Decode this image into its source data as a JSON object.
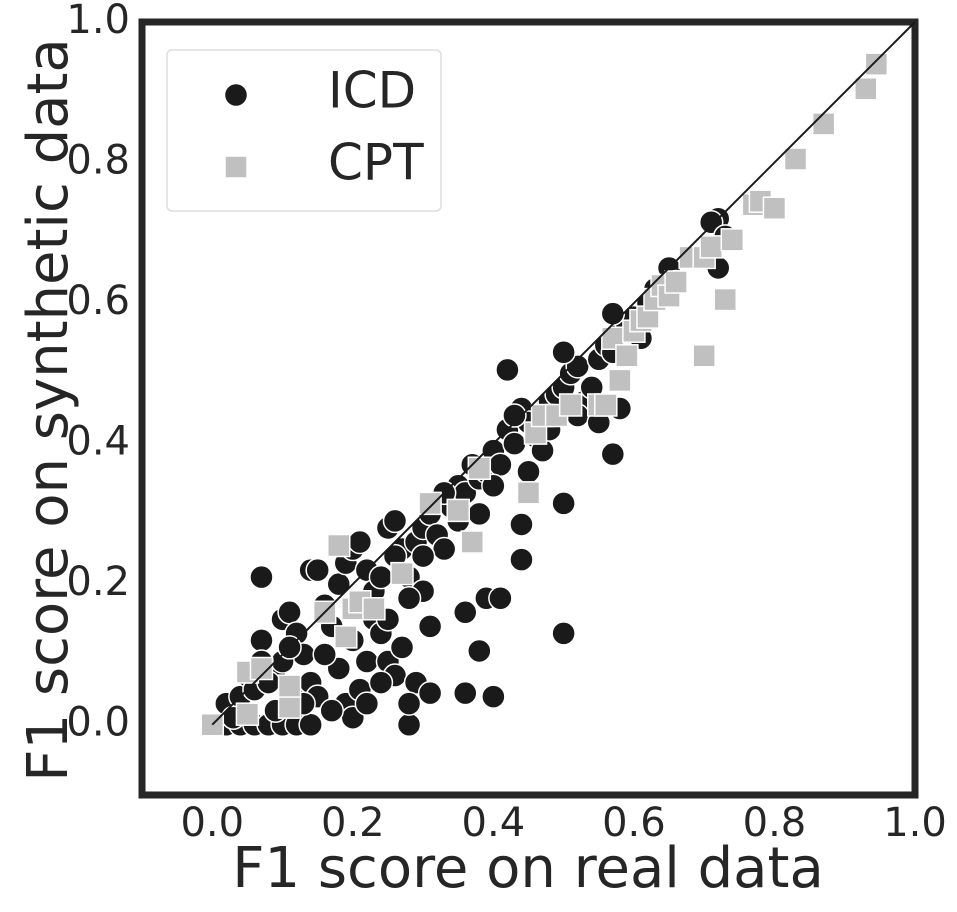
{
  "chart_data": {
    "type": "scatter",
    "xlabel": "F1 score on real data",
    "ylabel": "F1 score on synthetic data",
    "xlim": [
      -0.1,
      1.0
    ],
    "ylim": [
      -0.1,
      1.0
    ],
    "xticks": [
      {
        "value": 0,
        "label": "0.0"
      },
      0.2,
      0.4,
      0.6,
      0.8,
      {
        "value": 1,
        "label": "1.0"
      }
    ],
    "yticks": [
      {
        "value": 0,
        "label": "0.0"
      },
      0.2,
      0.4,
      0.6,
      0.8,
      {
        "value": 1,
        "label": "1.0"
      }
    ],
    "grid": false,
    "diagonal": [
      0,
      1
    ],
    "legend": "upper left",
    "series": [
      {
        "name": "ICD",
        "color": "#1a1a1a",
        "marker": "circle",
        "x": [
          0.02,
          0.04,
          0.06,
          0.08,
          0.1,
          0.12,
          0.14,
          0.02,
          0.04,
          0.05,
          0.07,
          0.09,
          0.1,
          0.11,
          0.12,
          0.13,
          0.14,
          0.15,
          0.16,
          0.17,
          0.18,
          0.19,
          0.2,
          0.21,
          0.22,
          0.23,
          0.24,
          0.25,
          0.26,
          0.27,
          0.28,
          0.29,
          0.18,
          0.19,
          0.2,
          0.21,
          0.22,
          0.23,
          0.24,
          0.25,
          0.26,
          0.27,
          0.28,
          0.29,
          0.3,
          0.31,
          0.32,
          0.3,
          0.31,
          0.33,
          0.34,
          0.35,
          0.36,
          0.37,
          0.38,
          0.39,
          0.4,
          0.41,
          0.42,
          0.43,
          0.44,
          0.45,
          0.46,
          0.47,
          0.48,
          0.49,
          0.5,
          0.51,
          0.52,
          0.53,
          0.54,
          0.55,
          0.56,
          0.57,
          0.58,
          0.59,
          0.6,
          0.61,
          0.62,
          0.63,
          0.64,
          0.65,
          0.66,
          0.5,
          0.52,
          0.55,
          0.45,
          0.4,
          0.35,
          0.3,
          0.06,
          0.08,
          0.1,
          0.12,
          0.14,
          0.16,
          0.15,
          0.13,
          0.09,
          0.2,
          0.25,
          0.22,
          0.17,
          0.26,
          0.33,
          0.43,
          0.48,
          0.38,
          0.28,
          0.24,
          0.11,
          0.07,
          0.03,
          0.07,
          0.42,
          0.5,
          0.39,
          0.41,
          0.36,
          0.38,
          0.36,
          0.4,
          0.28,
          0.31,
          0.5,
          0.44,
          0.44,
          0.57,
          0.72,
          0.71,
          0.73,
          0.72,
          0.57,
          0.58
        ],
        "y": [
          0.0,
          0.0,
          0.0,
          0.0,
          0.0,
          0.0,
          0.0,
          0.03,
          0.04,
          0.07,
          0.12,
          0.08,
          0.15,
          0.16,
          0.13,
          0.1,
          0.22,
          0.22,
          0.17,
          0.14,
          0.08,
          0.03,
          0.01,
          0.05,
          0.09,
          0.15,
          0.13,
          0.09,
          0.07,
          0.11,
          0.0,
          0.06,
          0.2,
          0.23,
          0.25,
          0.26,
          0.22,
          0.19,
          0.21,
          0.28,
          0.29,
          0.25,
          0.21,
          0.26,
          0.28,
          0.3,
          0.27,
          0.19,
          0.14,
          0.25,
          0.31,
          0.34,
          0.33,
          0.37,
          0.35,
          0.36,
          0.39,
          0.37,
          0.42,
          0.4,
          0.45,
          0.43,
          0.41,
          0.39,
          0.46,
          0.47,
          0.48,
          0.5,
          0.51,
          0.46,
          0.48,
          0.52,
          0.54,
          0.53,
          0.56,
          0.57,
          0.58,
          0.55,
          0.6,
          0.62,
          0.61,
          0.65,
          0.63,
          0.53,
          0.44,
          0.43,
          0.36,
          0.34,
          0.29,
          0.24,
          0.05,
          0.06,
          0.09,
          0.05,
          0.06,
          0.1,
          0.04,
          0.03,
          0.02,
          0.12,
          0.15,
          0.03,
          0.02,
          0.24,
          0.33,
          0.44,
          0.42,
          0.3,
          0.18,
          0.06,
          0.11,
          0.09,
          0.01,
          0.21,
          0.505,
          0.13,
          0.18,
          0.18,
          0.16,
          0.105,
          0.045,
          0.04,
          0.03,
          0.045,
          0.315,
          0.235,
          0.285,
          0.385,
          0.72,
          0.715,
          0.695,
          0.65,
          0.585,
          0.45
        ]
      },
      {
        "name": "CPT",
        "color": "#c0c0c0",
        "marker": "square",
        "x": [
          0.0,
          0.05,
          0.05,
          0.07,
          0.11,
          0.11,
          0.16,
          0.18,
          0.19,
          0.2,
          0.21,
          0.23,
          0.27,
          0.31,
          0.35,
          0.37,
          0.38,
          0.45,
          0.46,
          0.47,
          0.49,
          0.51,
          0.55,
          0.56,
          0.57,
          0.58,
          0.59,
          0.6,
          0.61,
          0.62,
          0.63,
          0.64,
          0.65,
          0.66,
          0.68,
          0.7,
          0.71,
          0.7,
          0.73,
          0.74,
          0.77,
          0.78,
          0.8,
          0.83,
          0.87,
          0.93,
          0.945
        ],
        "y": [
          0.0,
          0.015,
          0.075,
          0.08,
          0.025,
          0.055,
          0.16,
          0.255,
          0.125,
          0.165,
          0.175,
          0.165,
          0.215,
          0.315,
          0.305,
          0.26,
          0.365,
          0.33,
          0.415,
          0.44,
          0.44,
          0.455,
          0.455,
          0.455,
          0.55,
          0.49,
          0.525,
          0.56,
          0.575,
          0.58,
          0.605,
          0.625,
          0.61,
          0.63,
          0.665,
          0.665,
          0.68,
          0.525,
          0.605,
          0.69,
          0.74,
          0.745,
          0.735,
          0.805,
          0.855,
          0.905,
          0.94
        ]
      }
    ]
  }
}
